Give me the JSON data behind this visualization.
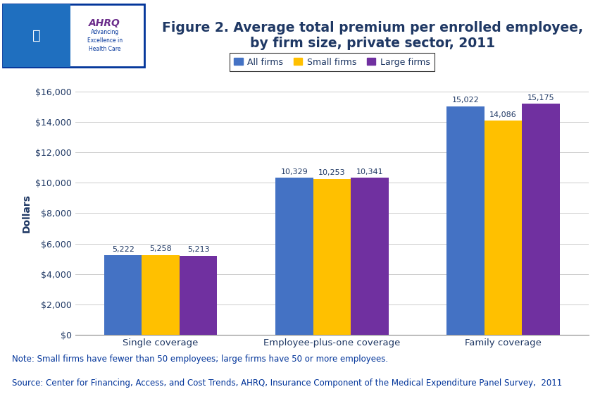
{
  "title": "Figure 2. Average total premium per enrolled employee,\nby firm size, private sector, 2011",
  "categories": [
    "Single coverage",
    "Employee-plus-one coverage",
    "Family coverage"
  ],
  "series": [
    {
      "name": "All firms",
      "color": "#4472C4",
      "values": [
        5222,
        10329,
        15022
      ]
    },
    {
      "name": "Small firms",
      "color": "#FFC000",
      "values": [
        5258,
        10253,
        14086
      ]
    },
    {
      "name": "Large firms",
      "color": "#7030A0",
      "values": [
        5213,
        10341,
        15175
      ]
    }
  ],
  "ylabel": "Dollars",
  "ylim": [
    0,
    16000
  ],
  "yticks": [
    0,
    2000,
    4000,
    6000,
    8000,
    10000,
    12000,
    14000,
    16000
  ],
  "ytick_labels": [
    "$0",
    "$2,000",
    "$4,000",
    "$6,000",
    "$8,000",
    "$10,000",
    "$12,000",
    "$14,000",
    "$16,000"
  ],
  "note": "Note: Small firms have fewer than 50 employees; large firms have 50 or more employees.",
  "source": "Source: Center for Financing, Access, and Cost Trends, AHRQ, Insurance Component of the Medical Expenditure Panel Survey,  2011",
  "bar_width": 0.22,
  "background_color": "#FFFFFF",
  "plot_bg_color": "#FFFFFF",
  "title_color": "#1F3864",
  "axis_label_color": "#1F3864",
  "tick_label_color": "#1F3864",
  "value_label_color": "#1F3864",
  "legend_border_color": "#000000",
  "blue_separator_color": "#00008B",
  "note_color": "#003399",
  "logo_bg_blue": "#1F6FBF",
  "logo_bg_white": "#FFFFFF",
  "logo_border_color": "#003399"
}
